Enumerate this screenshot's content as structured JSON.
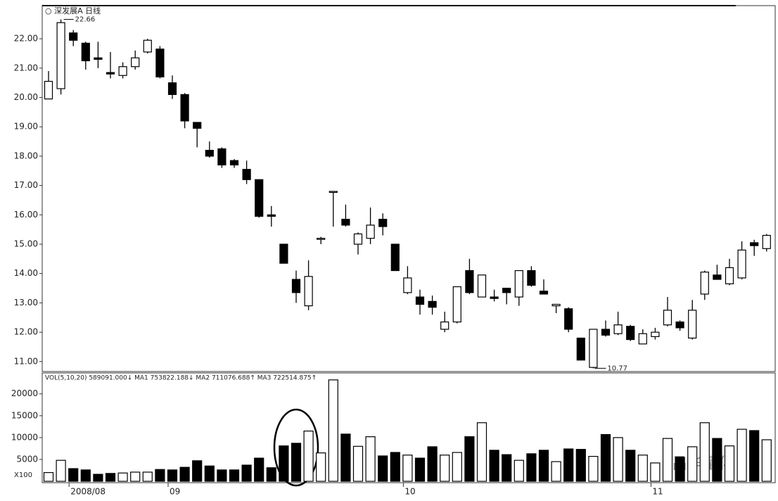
{
  "chart_data": {
    "type": "candlestick",
    "title": "○ 深发展A 日线",
    "categories": [
      null,
      null,
      "2008/08",
      null,
      null,
      null,
      null,
      null,
      null,
      null,
      "09",
      null,
      null,
      null,
      null,
      null,
      null,
      null,
      null,
      null,
      null,
      null,
      null,
      null,
      null,
      null,
      null,
      null,
      null,
      "10",
      null,
      null,
      null,
      null,
      null,
      null,
      null,
      null,
      null,
      null,
      null,
      null,
      null,
      null,
      null,
      null,
      null,
      null,
      null,
      "11",
      null,
      null,
      null,
      null,
      null,
      null,
      null,
      null,
      null
    ],
    "open": [
      19.95,
      20.3,
      22.2,
      21.85,
      21.35,
      20.85,
      20.75,
      21.05,
      21.55,
      21.65,
      20.5,
      20.1,
      19.15,
      18.2,
      18.25,
      17.85,
      17.55,
      17.2,
      16.0,
      15.0,
      13.8,
      12.9,
      15.2,
      16.8,
      15.85,
      15.0,
      15.2,
      15.85,
      15.0,
      13.35,
      13.2,
      13.05,
      12.1,
      12.35,
      14.1,
      13.2,
      13.2,
      13.5,
      13.2,
      14.1,
      13.4,
      12.9,
      12.8,
      11.8,
      10.8,
      12.1,
      11.95,
      12.2,
      11.6,
      11.85,
      12.25,
      12.35,
      11.8,
      13.3,
      13.95,
      13.65,
      13.85,
      15.05,
      14.85
    ],
    "high": [
      20.9,
      22.66,
      22.3,
      21.9,
      21.9,
      21.55,
      21.2,
      21.6,
      22.0,
      21.75,
      20.75,
      20.15,
      19.15,
      18.5,
      18.3,
      17.9,
      17.85,
      17.2,
      16.3,
      15.0,
      14.1,
      14.45,
      15.25,
      16.8,
      16.35,
      15.4,
      16.25,
      16.05,
      15.0,
      14.25,
      13.45,
      13.25,
      12.7,
      13.55,
      14.5,
      13.95,
      13.45,
      13.5,
      14.1,
      14.25,
      13.8,
      12.95,
      12.85,
      11.8,
      12.1,
      12.4,
      12.7,
      12.25,
      12.1,
      12.15,
      13.2,
      12.4,
      13.1,
      14.1,
      14.3,
      14.5,
      15.1,
      15.15,
      15.35
    ],
    "low": [
      19.95,
      20.1,
      21.75,
      20.95,
      21.0,
      20.65,
      20.65,
      20.95,
      21.5,
      20.65,
      19.95,
      18.95,
      18.3,
      17.95,
      17.6,
      17.6,
      17.05,
      15.9,
      15.6,
      14.35,
      13.0,
      12.75,
      15.0,
      15.6,
      15.6,
      14.65,
      15.0,
      15.3,
      14.1,
      13.3,
      12.6,
      12.6,
      12.0,
      12.3,
      13.3,
      13.2,
      13.05,
      12.95,
      12.9,
      13.55,
      13.3,
      12.65,
      12.0,
      11.05,
      10.77,
      11.85,
      11.9,
      11.7,
      11.6,
      11.75,
      12.2,
      12.05,
      11.75,
      13.1,
      13.8,
      13.6,
      13.8,
      14.6,
      14.75
    ],
    "close": [
      20.55,
      22.55,
      21.95,
      21.25,
      21.3,
      20.8,
      21.05,
      21.35,
      21.95,
      20.7,
      20.1,
      19.2,
      18.95,
      18.0,
      17.7,
      17.7,
      17.2,
      15.95,
      15.95,
      14.35,
      13.35,
      13.9,
      15.2,
      16.8,
      15.65,
      15.35,
      15.65,
      15.6,
      14.1,
      13.85,
      12.95,
      12.85,
      12.35,
      13.55,
      13.35,
      13.95,
      13.15,
      13.35,
      14.1,
      13.6,
      13.3,
      12.95,
      12.1,
      11.05,
      12.1,
      11.9,
      12.25,
      11.75,
      11.95,
      12.0,
      12.75,
      12.15,
      12.75,
      14.05,
      13.8,
      14.2,
      14.8,
      14.95,
      15.3
    ],
    "volume": [
      2000,
      4800,
      2900,
      2600,
      1600,
      1800,
      1900,
      2100,
      2100,
      2700,
      2600,
      3200,
      4700,
      3500,
      2600,
      2600,
      3700,
      5300,
      3100,
      8100,
      8700,
      11500,
      6500,
      23200,
      10800,
      8000,
      10200,
      5800,
      6600,
      6000,
      5300,
      7900,
      6000,
      6600,
      10200,
      13400,
      7100,
      6100,
      4800,
      6300,
      7100,
      4500,
      7400,
      7300,
      5700,
      10700,
      10000,
      7100,
      6000,
      4200,
      9800,
      5500,
      7900,
      13400,
      9800,
      8100,
      11900,
      11600,
      9500
    ],
    "ylim": [
      10.66,
      23.13
    ],
    "yticks": [
      {
        "value": 11,
        "label": "11.00"
      },
      {
        "value": 12,
        "label": "12.00"
      },
      {
        "value": 13,
        "label": "13.00"
      },
      {
        "value": 14,
        "label": "14.00"
      },
      {
        "value": 15,
        "label": "15.00"
      },
      {
        "value": 16,
        "label": "16.00"
      },
      {
        "value": 17,
        "label": "17.00"
      },
      {
        "value": 18,
        "label": "18.00"
      },
      {
        "value": 19,
        "label": "19.00"
      },
      {
        "value": 20,
        "label": "20.00"
      },
      {
        "value": 21,
        "label": "21.00"
      },
      {
        "value": 22,
        "label": "22.00"
      }
    ],
    "volume_ylim": [
      0,
      23500
    ],
    "volume_yticks": [
      5000,
      10000,
      15000,
      20000
    ],
    "volume_unit": "X100",
    "volume_header": "VOL(5,10,20) 589091.000↓ MA1 753822.188↓ MA2 711076.688↑ MA3 722514.875↑",
    "annotations": [
      "22.66",
      "10.77"
    ],
    "watermark": "昌华量化"
  }
}
